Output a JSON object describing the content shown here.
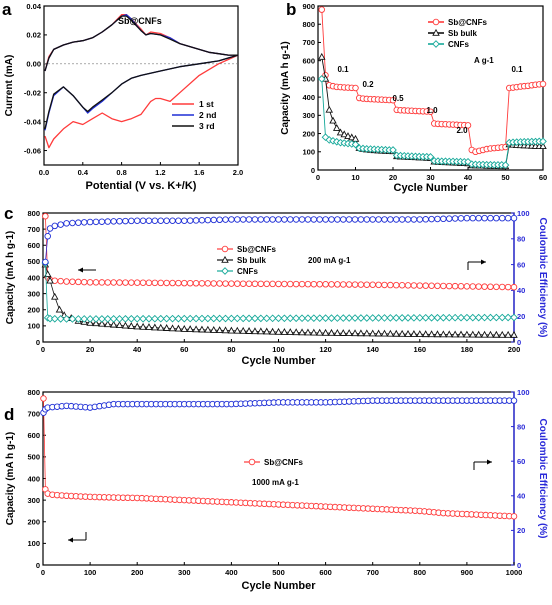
{
  "colors": {
    "red": "#ff3b3b",
    "darkred": "#e32222",
    "blue": "#1f2fd6",
    "black": "#111111",
    "teal": "#16a99a",
    "axis_blue": "#2929d8"
  },
  "chart_data": [
    {
      "panel": "a",
      "type": "line",
      "title": "Sb@CNFs",
      "xlabel": "Potential (V vs. K+/K)",
      "ylabel": "Current (mA)",
      "xlim": [
        0.0,
        2.0
      ],
      "ylim": [
        -0.07,
        0.04
      ],
      "xticks": [
        "0.0",
        "0.4",
        "0.8",
        "1.2",
        "1.6",
        "2.0"
      ],
      "yticks": [
        "-0.06",
        "-0.04",
        "-0.02",
        "0.00",
        "0.02",
        "0.04"
      ],
      "legend": "bottom-right",
      "series": [
        {
          "name": "1 st",
          "color": "red",
          "x": [
            0.01,
            0.05,
            0.1,
            0.2,
            0.3,
            0.4,
            0.5,
            0.6,
            0.7,
            0.8,
            0.85,
            0.9,
            1.0,
            1.05,
            1.1,
            1.2,
            1.3,
            1.4,
            1.5,
            1.6,
            1.7,
            1.8,
            1.9,
            2.0,
            1.9,
            1.8,
            1.6,
            1.4,
            1.3,
            1.2,
            1.15,
            1.1,
            1.0,
            0.9,
            0.8,
            0.7,
            0.6,
            0.5,
            0.4,
            0.3,
            0.2,
            0.1,
            0.05,
            0.01
          ],
          "y": [
            -0.005,
            0.005,
            0.01,
            0.013,
            0.015,
            0.016,
            0.018,
            0.022,
            0.027,
            0.034,
            0.034,
            0.031,
            0.024,
            0.02,
            0.022,
            0.021,
            0.018,
            0.014,
            0.012,
            0.01,
            0.008,
            0.007,
            0.006,
            0.006,
            0.003,
            0.0,
            -0.008,
            -0.02,
            -0.026,
            -0.024,
            -0.024,
            -0.026,
            -0.035,
            -0.038,
            -0.04,
            -0.038,
            -0.034,
            -0.038,
            -0.042,
            -0.04,
            -0.045,
            -0.052,
            -0.058,
            -0.05
          ]
        },
        {
          "name": "2 nd",
          "color": "blue",
          "x": [
            0.01,
            0.05,
            0.1,
            0.2,
            0.3,
            0.4,
            0.5,
            0.6,
            0.7,
            0.8,
            0.85,
            0.9,
            1.0,
            1.05,
            1.1,
            1.2,
            1.3,
            1.4,
            1.5,
            1.6,
            1.7,
            1.8,
            1.9,
            2.0,
            1.9,
            1.8,
            1.6,
            1.4,
            1.2,
            1.0,
            0.9,
            0.8,
            0.7,
            0.6,
            0.5,
            0.45,
            0.4,
            0.3,
            0.2,
            0.1,
            0.05,
            0.01
          ],
          "y": [
            -0.005,
            0.004,
            0.01,
            0.013,
            0.015,
            0.016,
            0.018,
            0.022,
            0.027,
            0.033,
            0.034,
            0.031,
            0.023,
            0.02,
            0.021,
            0.02,
            0.018,
            0.014,
            0.012,
            0.01,
            0.008,
            0.007,
            0.006,
            0.006,
            0.004,
            0.002,
            0.0,
            -0.002,
            -0.005,
            -0.008,
            -0.01,
            -0.014,
            -0.02,
            -0.026,
            -0.031,
            -0.034,
            -0.03,
            -0.022,
            -0.016,
            -0.022,
            -0.034,
            -0.046
          ]
        },
        {
          "name": "3 rd",
          "color": "black",
          "x": [
            0.01,
            0.05,
            0.1,
            0.2,
            0.3,
            0.4,
            0.5,
            0.6,
            0.7,
            0.8,
            0.85,
            0.9,
            1.0,
            1.05,
            1.1,
            1.2,
            1.3,
            1.4,
            1.5,
            1.6,
            1.7,
            1.8,
            1.9,
            2.0,
            1.9,
            1.8,
            1.6,
            1.4,
            1.2,
            1.0,
            0.9,
            0.8,
            0.7,
            0.6,
            0.5,
            0.45,
            0.4,
            0.3,
            0.2,
            0.1,
            0.05,
            0.01
          ],
          "y": [
            -0.005,
            0.004,
            0.01,
            0.013,
            0.015,
            0.016,
            0.018,
            0.022,
            0.027,
            0.033,
            0.033,
            0.03,
            0.023,
            0.02,
            0.021,
            0.02,
            0.017,
            0.014,
            0.012,
            0.01,
            0.008,
            0.007,
            0.006,
            0.006,
            0.004,
            0.002,
            0.0,
            -0.002,
            -0.005,
            -0.008,
            -0.01,
            -0.014,
            -0.02,
            -0.025,
            -0.03,
            -0.033,
            -0.03,
            -0.022,
            -0.016,
            -0.021,
            -0.033,
            -0.045
          ]
        }
      ]
    },
    {
      "panel": "b",
      "type": "scatter",
      "xlabel": "Cycle Number",
      "ylabel": "Capacity (mA h g-1)",
      "xlim": [
        0,
        60
      ],
      "ylim": [
        0,
        900
      ],
      "xticks": [
        "0",
        "10",
        "20",
        "30",
        "40",
        "50",
        "60"
      ],
      "yticks": [
        "0",
        "100",
        "200",
        "300",
        "400",
        "500",
        "600",
        "700",
        "800",
        "900"
      ],
      "legend": "top-right",
      "unit_label": "A g-1",
      "annotations": [
        "0.1",
        "0.2",
        "0.5",
        "1.0",
        "2.0",
        "0.1"
      ],
      "series": [
        {
          "name": "Sb@CNFs",
          "color": "red",
          "marker": "circle",
          "x": [
            1,
            2,
            3,
            4,
            5,
            6,
            7,
            8,
            9,
            10,
            11,
            12,
            13,
            14,
            15,
            16,
            17,
            18,
            19,
            20,
            21,
            22,
            23,
            24,
            25,
            26,
            27,
            28,
            29,
            30,
            31,
            32,
            33,
            34,
            35,
            36,
            37,
            38,
            39,
            40,
            41,
            42,
            43,
            44,
            45,
            46,
            47,
            48,
            49,
            50,
            51,
            52,
            53,
            54,
            55,
            56,
            57,
            58,
            59,
            60
          ],
          "y": [
            880,
            520,
            465,
            460,
            456,
            455,
            453,
            452,
            451,
            450,
            395,
            392,
            390,
            389,
            388,
            387,
            386,
            385,
            384,
            383,
            330,
            328,
            327,
            326,
            325,
            324,
            323,
            322,
            321,
            320,
            255,
            253,
            252,
            251,
            250,
            249,
            248,
            247,
            246,
            245,
            110,
            100,
            105,
            110,
            115,
            118,
            120,
            122,
            124,
            126,
            450,
            452,
            455,
            458,
            460,
            462,
            465,
            468,
            470,
            472
          ]
        },
        {
          "name": "Sb bulk",
          "color": "black",
          "marker": "triangle",
          "x": [
            1,
            2,
            3,
            4,
            5,
            6,
            7,
            8,
            9,
            10,
            11,
            12,
            13,
            14,
            15,
            16,
            17,
            18,
            19,
            20,
            21,
            22,
            23,
            24,
            25,
            26,
            27,
            28,
            29,
            30,
            31,
            32,
            33,
            34,
            35,
            36,
            37,
            38,
            39,
            40,
            41,
            42,
            43,
            44,
            45,
            46,
            47,
            48,
            49,
            50,
            51,
            52,
            53,
            54,
            55,
            56,
            57,
            58,
            59,
            60
          ],
          "y": [
            620,
            500,
            330,
            270,
            230,
            205,
            195,
            185,
            178,
            170,
            120,
            115,
            112,
            110,
            108,
            106,
            105,
            104,
            103,
            102,
            75,
            73,
            72,
            71,
            70,
            69,
            68,
            67,
            66,
            65,
            45,
            44,
            43,
            42,
            41,
            40,
            39,
            38,
            37,
            36,
            25,
            24,
            23,
            23,
            22,
            22,
            21,
            21,
            20,
            20,
            140,
            138,
            136,
            135,
            134,
            133,
            132,
            131,
            130,
            130
          ]
        },
        {
          "name": "CNFs",
          "color": "teal",
          "marker": "diamond",
          "x": [
            1,
            2,
            3,
            4,
            5,
            6,
            7,
            8,
            9,
            10,
            11,
            12,
            13,
            14,
            15,
            16,
            17,
            18,
            19,
            20,
            21,
            22,
            23,
            24,
            25,
            26,
            27,
            28,
            29,
            30,
            31,
            32,
            33,
            34,
            35,
            36,
            37,
            38,
            39,
            40,
            41,
            42,
            43,
            44,
            45,
            46,
            47,
            48,
            49,
            50,
            51,
            52,
            53,
            54,
            55,
            56,
            57,
            58,
            59,
            60
          ],
          "y": [
            500,
            180,
            165,
            160,
            155,
            150,
            148,
            145,
            143,
            140,
            120,
            118,
            116,
            115,
            114,
            113,
            112,
            111,
            110,
            110,
            80,
            79,
            78,
            77,
            76,
            75,
            74,
            73,
            73,
            72,
            50,
            49,
            48,
            48,
            47,
            47,
            46,
            46,
            45,
            45,
            32,
            31,
            30,
            30,
            29,
            29,
            28,
            28,
            28,
            27,
            150,
            152,
            153,
            154,
            155,
            155,
            156,
            156,
            157,
            157
          ]
        }
      ]
    },
    {
      "panel": "c",
      "type": "scatter",
      "xlabel": "Cycle Number",
      "ylabel": "Capacity (mA h g-1)",
      "y2label": "Coulombic Efficiency (%)",
      "xlim": [
        0,
        200
      ],
      "ylim": [
        0,
        800
      ],
      "y2lim": [
        0,
        100
      ],
      "xticks": [
        "0",
        "20",
        "40",
        "60",
        "80",
        "100",
        "120",
        "140",
        "160",
        "180",
        "200"
      ],
      "yticks": [
        "0",
        "100",
        "200",
        "300",
        "400",
        "500",
        "600",
        "700",
        "800"
      ],
      "y2ticks": [
        "0",
        "20",
        "40",
        "60",
        "80",
        "100"
      ],
      "legend": "center",
      "annotation": "200 mA g-1",
      "series": [
        {
          "name": "Sb@CNFs",
          "color": "red",
          "marker": "circle",
          "x": [
            1,
            2,
            3,
            5,
            10,
            20,
            40,
            60,
            80,
            100,
            120,
            140,
            160,
            180,
            200
          ],
          "y": [
            780,
            400,
            385,
            380,
            375,
            370,
            368,
            365,
            362,
            360,
            358,
            355,
            350,
            345,
            340
          ]
        },
        {
          "name": "Sb bulk",
          "color": "black",
          "marker": "triangle",
          "x": [
            1,
            2,
            3,
            5,
            7,
            9,
            15,
            20,
            40,
            60,
            80,
            100,
            120,
            140,
            160,
            180,
            200
          ],
          "y": [
            480,
            420,
            380,
            280,
            200,
            165,
            130,
            118,
            95,
            80,
            70,
            62,
            56,
            52,
            48,
            45,
            43
          ]
        },
        {
          "name": "CNFs",
          "color": "teal",
          "marker": "diamond",
          "x": [
            1,
            2,
            3,
            5,
            10,
            20,
            40,
            60,
            80,
            100,
            120,
            140,
            160,
            180,
            200
          ],
          "y": [
            490,
            150,
            145,
            144,
            143,
            143,
            144,
            145,
            146,
            147,
            148,
            149,
            150,
            151,
            152
          ]
        },
        {
          "name": "Coulombic Efficiency",
          "color": "blue",
          "marker": "circle",
          "axis": "y2",
          "x": [
            1,
            2,
            3,
            5,
            10,
            20,
            40,
            60,
            80,
            100,
            120,
            140,
            160,
            180,
            200
          ],
          "y": [
            62,
            82,
            88,
            90,
            92,
            93,
            94,
            94,
            95,
            95,
            95,
            95,
            95,
            96,
            96
          ]
        }
      ]
    },
    {
      "panel": "d",
      "type": "scatter",
      "xlabel": "Cycle Number",
      "ylabel": "Capacity (mA h g-1)",
      "y2label": "Coulombic Efficiency (%)",
      "xlim": [
        0,
        1000
      ],
      "ylim": [
        0,
        800
      ],
      "y2lim": [
        0,
        100
      ],
      "xticks": [
        "0",
        "100",
        "200",
        "300",
        "400",
        "500",
        "600",
        "700",
        "800",
        "900",
        "1000"
      ],
      "yticks": [
        "0",
        "100",
        "200",
        "300",
        "400",
        "500",
        "600",
        "700",
        "800"
      ],
      "y2ticks": [
        "0",
        "20",
        "40",
        "60",
        "80",
        "100"
      ],
      "legend": "center",
      "annotation": "1000 mA g-1",
      "series": [
        {
          "name": "Sb@CNFs",
          "color": "red",
          "marker": "circle",
          "x": [
            1,
            5,
            10,
            20,
            50,
            100,
            150,
            200,
            250,
            300,
            350,
            400,
            450,
            500,
            550,
            600,
            650,
            700,
            750,
            800,
            850,
            900,
            950,
            1000
          ],
          "y": [
            770,
            350,
            330,
            325,
            320,
            315,
            312,
            310,
            305,
            300,
            295,
            290,
            285,
            280,
            275,
            270,
            265,
            260,
            255,
            250,
            240,
            235,
            230,
            225
          ]
        },
        {
          "name": "Coulombic Efficiency",
          "color": "blue",
          "marker": "circle",
          "axis": "y2",
          "x": [
            1,
            5,
            10,
            50,
            100,
            150,
            200,
            300,
            400,
            500,
            600,
            700,
            800,
            900,
            1000
          ],
          "y": [
            88,
            90,
            91,
            92,
            91,
            93,
            93,
            93,
            93,
            94,
            94,
            95,
            95,
            95,
            95
          ]
        }
      ]
    }
  ]
}
